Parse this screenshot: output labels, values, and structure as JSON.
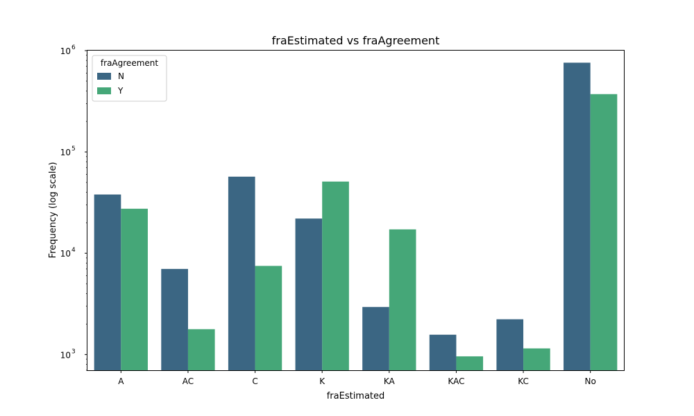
{
  "chart_data": {
    "type": "bar",
    "title": "fraEstimated vs fraAgreement",
    "xlabel": "fraEstimated",
    "ylabel": "Frequency (log scale)",
    "yscale": "log",
    "ylim": [
      700,
      1000000
    ],
    "yticks": [
      {
        "value": 1000,
        "base": "10",
        "exp": "3"
      },
      {
        "value": 10000,
        "base": "10",
        "exp": "4"
      },
      {
        "value": 100000,
        "base": "10",
        "exp": "5"
      },
      {
        "value": 1000000,
        "base": "10",
        "exp": "6"
      }
    ],
    "categories": [
      "A",
      "AC",
      "C",
      "K",
      "KA",
      "KAC",
      "KC",
      "No"
    ],
    "series": [
      {
        "name": "N",
        "color": "#3b6683",
        "values": [
          38000,
          7000,
          57000,
          22000,
          2950,
          1570,
          2230,
          760000
        ]
      },
      {
        "name": "Y",
        "color": "#45a778",
        "values": [
          27500,
          1780,
          7500,
          51000,
          17200,
          960,
          1150,
          372000
        ]
      }
    ],
    "legend": {
      "title": "fraAgreement",
      "position": "top-left"
    },
    "grid": false
  }
}
